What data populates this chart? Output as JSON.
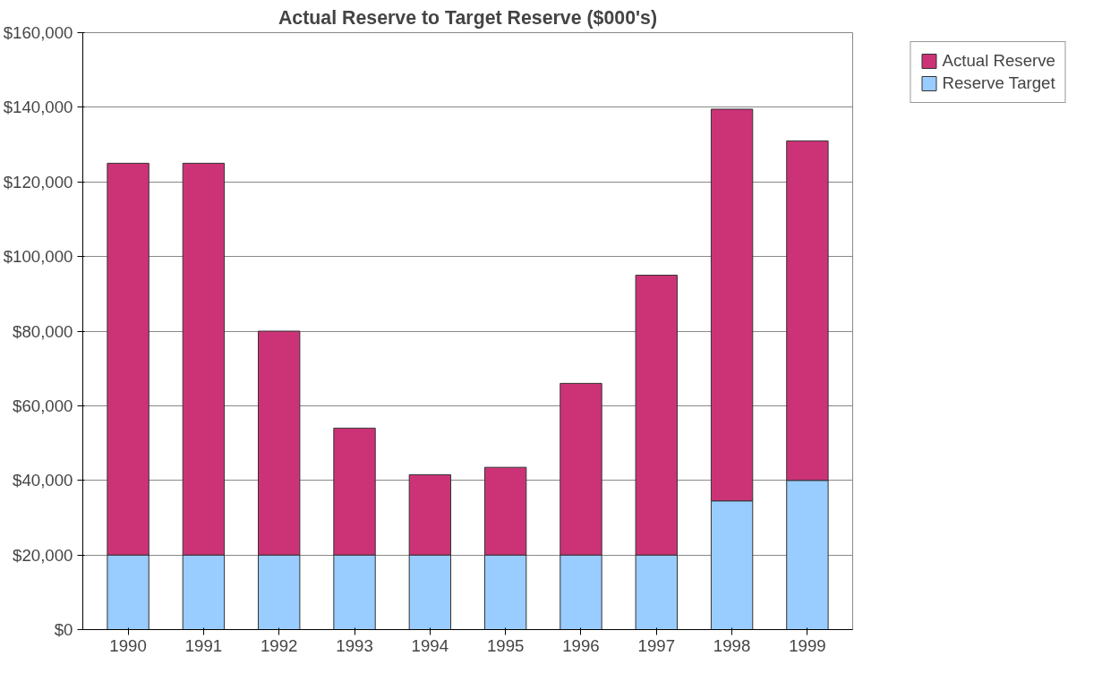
{
  "chart_data": {
    "type": "bar",
    "title": "Actual Reserve to Target Reserve ($000's)",
    "stacked": true,
    "categories": [
      "1990",
      "1991",
      "1992",
      "1993",
      "1994",
      "1995",
      "1996",
      "1997",
      "1998",
      "1999"
    ],
    "series": [
      {
        "name": "Reserve Target",
        "color": "#99ccff",
        "values": [
          20000,
          20000,
          20000,
          20000,
          20000,
          20000,
          20000,
          20000,
          34500,
          40000
        ]
      },
      {
        "name": "Actual Reserve",
        "color": "#cc3377",
        "values": [
          105000,
          105000,
          60000,
          34000,
          21500,
          23500,
          46000,
          75000,
          105000,
          91000
        ]
      }
    ],
    "ylim": [
      0,
      160000
    ],
    "yticks": [
      {
        "value": 0,
        "label": "$0"
      },
      {
        "value": 20000,
        "label": "$20,000"
      },
      {
        "value": 40000,
        "label": "$40,000"
      },
      {
        "value": 60000,
        "label": "$60,000"
      },
      {
        "value": 80000,
        "label": "$80,000"
      },
      {
        "value": 100000,
        "label": "$100,000"
      },
      {
        "value": 120000,
        "label": "$120,000"
      },
      {
        "value": 140000,
        "label": "$140,000"
      },
      {
        "value": 160000,
        "label": "$160,000"
      }
    ],
    "grid": "y",
    "legend": "right"
  }
}
